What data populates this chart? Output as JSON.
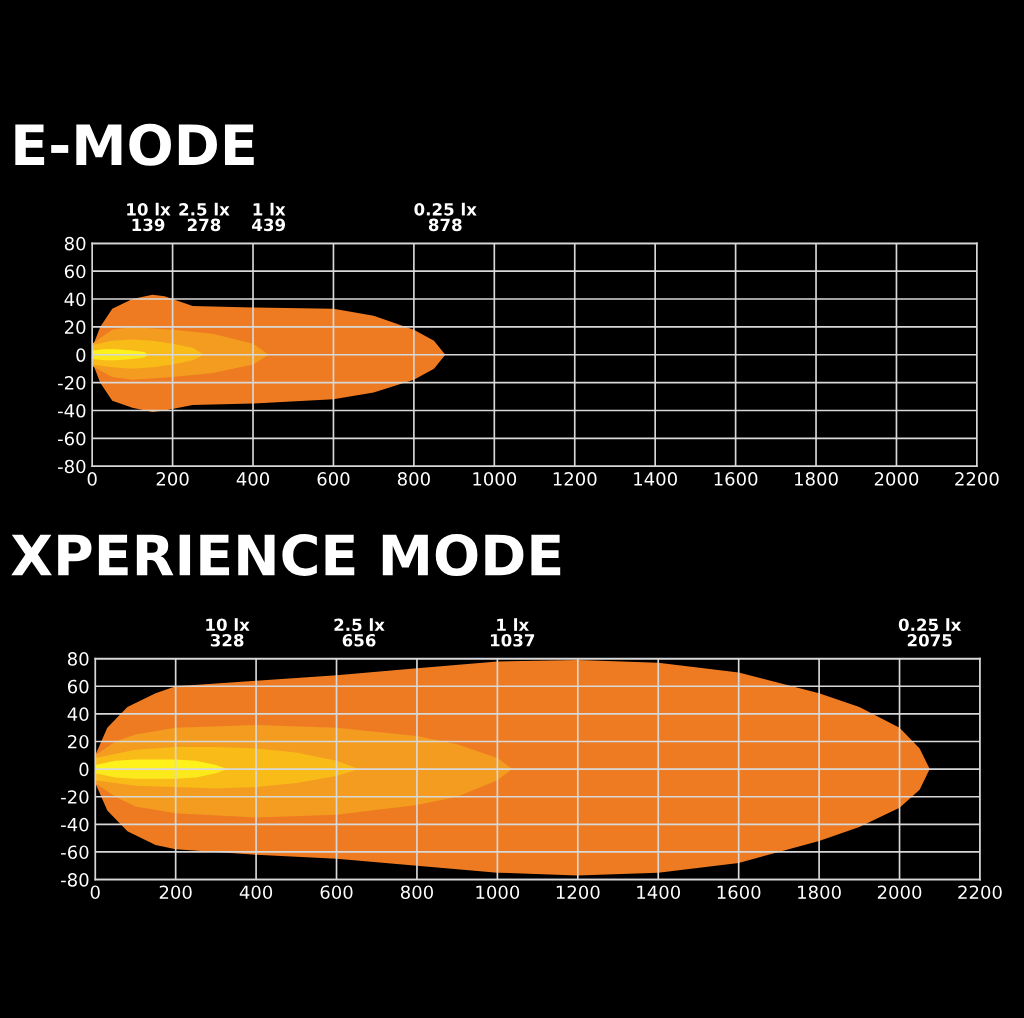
{
  "chart_data": [
    {
      "type": "area",
      "title": "E-MODE",
      "xlim": [
        0,
        2200
      ],
      "xticks": [
        0,
        200,
        400,
        600,
        800,
        1000,
        1200,
        1400,
        1600,
        1800,
        2000,
        2200
      ],
      "ylim": [
        -80,
        80
      ],
      "yticks": [
        -80,
        -60,
        -40,
        -20,
        0,
        20,
        40,
        60,
        80
      ],
      "grid": true,
      "series": [
        {
          "color": "#ee7b22",
          "x": [
            0,
            20,
            50,
            100,
            150,
            180,
            250,
            400,
            600,
            700,
            800,
            850,
            878
          ],
          "values": [
            5,
            20,
            33,
            40,
            43,
            42,
            35,
            34,
            33,
            28,
            18,
            10,
            0
          ]
        },
        {
          "color": "#ee7b22",
          "x": [
            0,
            20,
            50,
            100,
            150,
            180,
            250,
            400,
            600,
            700,
            800,
            850,
            878
          ],
          "values": [
            -5,
            -20,
            -33,
            -38,
            -41,
            -40,
            -36,
            -35,
            -32,
            -27,
            -18,
            -10,
            0
          ]
        },
        {
          "color": "#f39c1f",
          "x": [
            0,
            50,
            100,
            200,
            300,
            400,
            439
          ],
          "values": [
            8,
            18,
            20,
            18,
            15,
            8,
            0
          ]
        },
        {
          "color": "#f39c1f",
          "x": [
            0,
            50,
            100,
            200,
            300,
            400,
            439
          ],
          "values": [
            -8,
            -16,
            -18,
            -16,
            -13,
            -7,
            0
          ]
        },
        {
          "color": "#f9bb18",
          "x": [
            0,
            50,
            100,
            150,
            200,
            250,
            278
          ],
          "values": [
            7,
            10,
            11,
            10,
            8,
            5,
            0
          ]
        },
        {
          "color": "#f9bb18",
          "x": [
            0,
            50,
            100,
            150,
            200,
            250,
            278
          ],
          "values": [
            -7,
            -9,
            -10,
            -9,
            -7,
            -4,
            0
          ]
        },
        {
          "color": "#fff21a",
          "x": [
            0,
            30,
            60,
            100,
            130,
            139
          ],
          "values": [
            3,
            4,
            4,
            3,
            2,
            0
          ]
        },
        {
          "color": "#fbe91c",
          "x": [
            0,
            30,
            60,
            100,
            130,
            139
          ],
          "values": [
            -3,
            -4,
            -4,
            -3,
            -2,
            0
          ]
        }
      ],
      "annotations": [
        "10 lx\n139",
        "2.5 lx\n278",
        "1 lx\n439",
        "0.25 lx\n878"
      ]
    },
    {
      "type": "area",
      "title": "XPERIENCE MODE",
      "xlim": [
        0,
        2200
      ],
      "xticks": [
        0,
        200,
        400,
        600,
        800,
        1000,
        1200,
        1400,
        1600,
        1800,
        2000,
        2200
      ],
      "ylim": [
        -80,
        80
      ],
      "yticks": [
        -80,
        -60,
        -40,
        -20,
        0,
        20,
        40,
        60,
        80
      ],
      "grid": true,
      "series": [
        {
          "color": "#ee7b22",
          "x": [
            0,
            30,
            80,
            150,
            200,
            300,
            400,
            600,
            800,
            1000,
            1200,
            1400,
            1600,
            1800,
            1900,
            2000,
            2050,
            2075
          ],
          "values": [
            10,
            30,
            45,
            55,
            60,
            62,
            64,
            68,
            73,
            78,
            79,
            77,
            70,
            55,
            45,
            30,
            15,
            0
          ]
        },
        {
          "color": "#ee7b22",
          "x": [
            0,
            30,
            80,
            150,
            200,
            300,
            400,
            600,
            800,
            1000,
            1200,
            1400,
            1600,
            1800,
            1900,
            2000,
            2050,
            2075
          ],
          "values": [
            -10,
            -30,
            -45,
            -55,
            -58,
            -60,
            -62,
            -65,
            -70,
            -75,
            -77,
            -75,
            -68,
            -52,
            -42,
            -28,
            -15,
            0
          ]
        },
        {
          "color": "#f39c1f",
          "x": [
            0,
            50,
            100,
            200,
            400,
            600,
            800,
            900,
            1000,
            1037
          ],
          "values": [
            10,
            20,
            25,
            30,
            32,
            30,
            24,
            18,
            8,
            0
          ]
        },
        {
          "color": "#f39c1f",
          "x": [
            0,
            50,
            100,
            200,
            400,
            600,
            800,
            900,
            1000,
            1037
          ],
          "values": [
            -10,
            -20,
            -27,
            -32,
            -35,
            -33,
            -26,
            -20,
            -8,
            0
          ]
        },
        {
          "color": "#f9bb18",
          "x": [
            0,
            100,
            200,
            300,
            400,
            500,
            600,
            656
          ],
          "values": [
            8,
            14,
            16,
            16,
            15,
            12,
            6,
            0
          ]
        },
        {
          "color": "#f9bb18",
          "x": [
            0,
            100,
            200,
            300,
            400,
            500,
            600,
            656
          ],
          "values": [
            -8,
            -12,
            -13,
            -14,
            -13,
            -10,
            -5,
            0
          ]
        },
        {
          "color": "#fff21a",
          "x": [
            0,
            50,
            100,
            200,
            250,
            300,
            328
          ],
          "values": [
            3,
            6,
            7,
            7,
            6,
            3,
            0
          ]
        },
        {
          "color": "#fbe91c",
          "x": [
            0,
            50,
            100,
            200,
            250,
            300,
            328
          ],
          "values": [
            -3,
            -6,
            -7,
            -7,
            -6,
            -3,
            0
          ]
        }
      ],
      "annotations": [
        "10 lx\n328",
        "2.5 lx\n656",
        "1 lx\n1037",
        "0.25 lx\n2075"
      ]
    }
  ]
}
